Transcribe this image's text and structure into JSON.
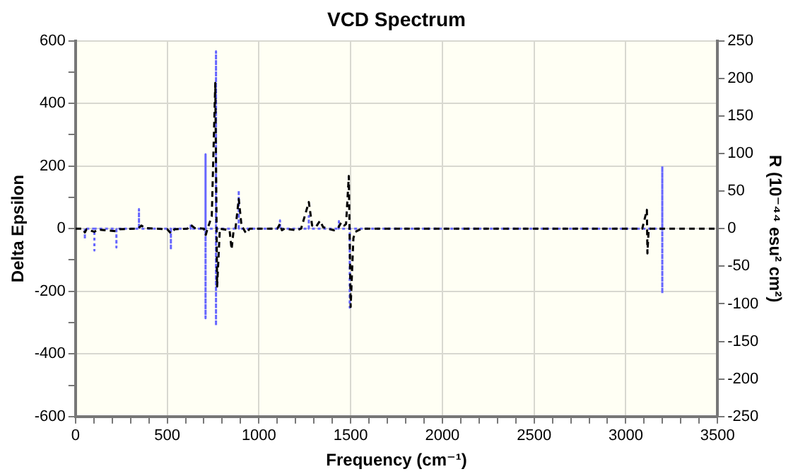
{
  "chart_data": {
    "type": "line",
    "title": "VCD Spectrum",
    "xlabel": "Frequency (cm⁻¹)",
    "ylabel": "Delta Epsilon",
    "y2label": "R (10⁻⁴⁴ esu² cm²)",
    "xlim": [
      0,
      3500
    ],
    "xticks": [
      0,
      {
        "value": 100,
        "label": null
      },
      {
        "value": 200,
        "label": null
      },
      {
        "value": 300,
        "label": null
      },
      {
        "value": 400,
        "label": null
      },
      500,
      {
        "value": 600,
        "label": null
      },
      {
        "value": 700,
        "label": null
      },
      {
        "value": 800,
        "label": null
      },
      {
        "value": 900,
        "label": null
      },
      1000,
      {
        "value": 1100,
        "label": null
      },
      {
        "value": 1200,
        "label": null
      },
      {
        "value": 1300,
        "label": null
      },
      {
        "value": 1400,
        "label": null
      },
      1500,
      {
        "value": 1600,
        "label": null
      },
      {
        "value": 1700,
        "label": null
      },
      {
        "value": 1800,
        "label": null
      },
      {
        "value": 1900,
        "label": null
      },
      2000,
      {
        "value": 2100,
        "label": null
      },
      {
        "value": 2200,
        "label": null
      },
      {
        "value": 2300,
        "label": null
      },
      {
        "value": 2400,
        "label": null
      },
      2500,
      {
        "value": 2600,
        "label": null
      },
      {
        "value": 2700,
        "label": null
      },
      {
        "value": 2800,
        "label": null
      },
      {
        "value": 2900,
        "label": null
      },
      3000,
      {
        "value": 3100,
        "label": null
      },
      {
        "value": 3200,
        "label": null
      },
      {
        "value": 3300,
        "label": null
      },
      {
        "value": 3400,
        "label": null
      },
      3500
    ],
    "ylim": [
      -600,
      600
    ],
    "yticks": [
      -600,
      {
        "value": -500,
        "label": null
      },
      -400,
      {
        "value": -300,
        "label": null
      },
      -200,
      {
        "value": -100,
        "label": null
      },
      0,
      {
        "value": 100,
        "label": null
      },
      200,
      {
        "value": 300,
        "label": null
      },
      400,
      {
        "value": 500,
        "label": null
      },
      600
    ],
    "y2lim": [
      -250,
      250
    ],
    "y2ticks": [
      -250,
      -200,
      -150,
      -100,
      -50,
      0,
      50,
      100,
      150,
      200,
      250
    ],
    "grid": true,
    "legend": false,
    "marker": "none",
    "series": [
      {
        "color": "#000000",
        "line_style": "dashed",
        "x": [
          0,
          40,
          51,
          60,
          103,
          120,
          218,
          240,
          340,
          359,
          380,
          500,
          520,
          540,
          610,
          628,
          650,
          700,
          710,
          720,
          743,
          762,
          772,
          787,
          840,
          851,
          862,
          872,
          890,
          905,
          930,
          950,
          1100,
          1115,
          1125,
          1140,
          1205,
          1230,
          1272,
          1290,
          1310,
          1333,
          1350,
          1372,
          1410,
          1430,
          1449,
          1465,
          1475,
          1490,
          1500,
          1515,
          1526,
          1560,
          3090,
          3115,
          3118,
          3125,
          3500
        ],
        "values": [
          0,
          0,
          -12,
          -2,
          -10,
          -3,
          -8,
          -2,
          0,
          10,
          2,
          -2,
          -15,
          -2,
          0,
          12,
          2,
          0,
          -20,
          0,
          40,
          465,
          -185,
          0,
          -5,
          -66,
          -5,
          0,
          95,
          10,
          -15,
          0,
          0,
          15,
          -5,
          0,
          -5,
          0,
          85,
          10,
          5,
          25,
          5,
          0,
          -5,
          0,
          20,
          10,
          15,
          168,
          -250,
          -30,
          -10,
          0,
          0,
          60,
          -79,
          0,
          0
        ]
      },
      {
        "color": "#6666ff",
        "line_style": "dotted",
        "axis": "y2",
        "x": [
          51,
          51,
          51,
          103,
          103,
          103,
          223,
          223,
          223,
          346,
          346,
          346,
          520,
          520,
          520,
          628,
          628,
          628,
          709,
          709,
          709,
          709,
          766,
          766,
          766,
          766,
          890,
          890,
          890,
          1115,
          1115,
          1115,
          1272,
          1272,
          1272,
          1436,
          1436,
          1436,
          1495,
          1495,
          1495,
          3199,
          3199,
          3199,
          3199
        ],
        "values": [
          0,
          -14,
          0,
          0,
          -29,
          0,
          0,
          -25,
          0,
          0,
          26,
          0,
          0,
          -28,
          0,
          0,
          6,
          0,
          0,
          99,
          -119,
          0,
          0,
          236,
          -129,
          0,
          0,
          51,
          0,
          0,
          11,
          0,
          0,
          17,
          0,
          0,
          10,
          0,
          0,
          -105,
          0,
          0,
          83,
          -86,
          0
        ]
      }
    ]
  }
}
